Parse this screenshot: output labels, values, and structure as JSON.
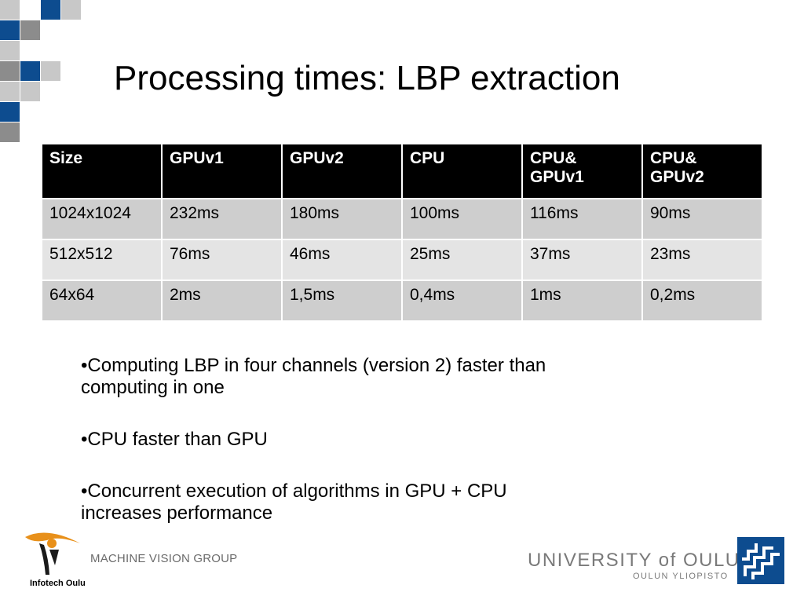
{
  "slide": {
    "title": "Processing times: LBP extraction"
  },
  "table": {
    "headers": [
      "Size",
      "GPUv1",
      "GPUv2",
      "CPU",
      "CPU& GPUv1",
      "CPU& GPUv2"
    ],
    "rows": [
      [
        "1024x1024",
        "232ms",
        "180ms",
        "100ms",
        "116ms",
        "90ms"
      ],
      [
        "512x512",
        "76ms",
        "46ms",
        "25ms",
        "37ms",
        "23ms"
      ],
      [
        "64x64",
        "2ms",
        "1,5ms",
        "0,4ms",
        "1ms",
        "0,2ms"
      ]
    ]
  },
  "bullets": [
    "•Computing  LBP in four channels (version 2) faster than computing in one",
    "•CPU faster than GPU",
    "•Concurrent execution of algorithms in GPU + CPU increases performance"
  ],
  "footer": {
    "group_label": "MACHINE VISION GROUP",
    "infotech_label": "Infotech Oulu",
    "university_name": "UNIVERSITY of OULU",
    "university_subtitle": "OULUN YLIOPISTO"
  },
  "colors": {
    "brand_blue": "#0d4c8f",
    "header_bg": "#000000",
    "row_dark": "#cecece",
    "row_light": "#e4e4e4",
    "logo_orange": "#e8901a"
  }
}
